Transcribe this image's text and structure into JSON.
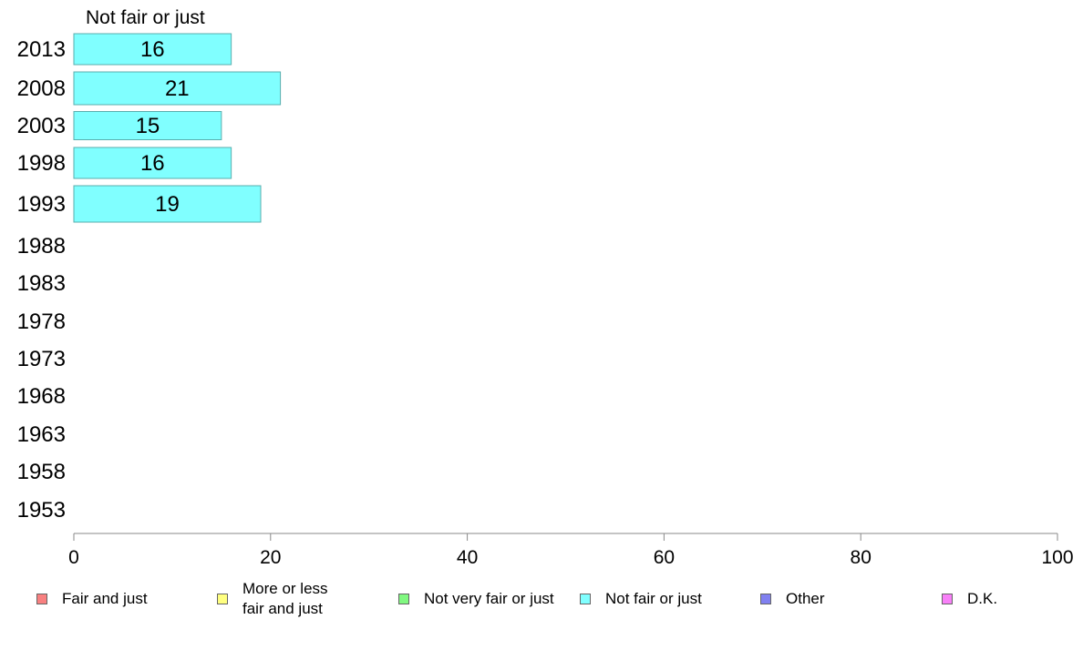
{
  "chart_data": {
    "type": "bar",
    "orientation": "horizontal",
    "panel_title": "Not fair or just",
    "categories": [
      "2013",
      "2008",
      "2003",
      "1998",
      "1993",
      "1988",
      "1983",
      "1978",
      "1973",
      "1968",
      "1963",
      "1958",
      "1953"
    ],
    "series": [
      {
        "name": "Not fair or just",
        "values": [
          16,
          21,
          15,
          16,
          19,
          null,
          null,
          null,
          null,
          null,
          null,
          null,
          null
        ],
        "color": "#80ffff"
      }
    ],
    "xlim": [
      0,
      100
    ],
    "xticks": [
      0,
      20,
      40,
      60,
      80,
      100
    ],
    "grid": false,
    "legend_position": "bottom"
  },
  "legend": [
    {
      "label": "Fair and just",
      "color": "#f88080"
    },
    {
      "label": "More or less\nfair and just",
      "color": "#ffff80"
    },
    {
      "label": "Not very fair or just",
      "color": "#80f880"
    },
    {
      "label": "Not fair or just",
      "color": "#80ffff"
    },
    {
      "label": "Other",
      "color": "#8080f0"
    },
    {
      "label": "D.K.",
      "color": "#f880f8"
    }
  ]
}
